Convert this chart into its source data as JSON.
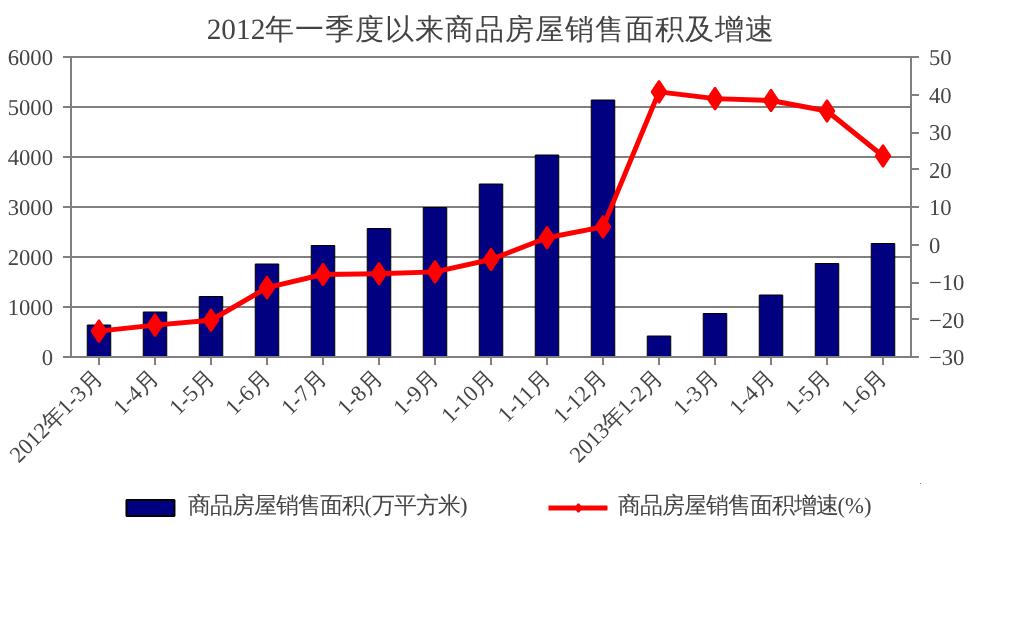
{
  "chart_data": {
    "type": "bar",
    "title": "2012年一季度以来商品房屋销售面积及增速",
    "categories": [
      "2012年1-3月",
      "1-4月",
      "1-5月",
      "1-6月",
      "1-7月",
      "1-8月",
      "1-9月",
      "1-10月",
      "1-11月",
      "1-12月",
      "2013年1-2月",
      "1-3月",
      "1-4月",
      "1-5月",
      "1-6月"
    ],
    "series": [
      {
        "name": "商品房屋销售面积(万平方米)",
        "color": "#000080",
        "values": [
          640,
          900,
          1210,
          1860,
          2230,
          2570,
          2990,
          3460,
          4040,
          5140,
          420,
          870,
          1240,
          1870,
          2270
        ]
      },
      {
        "name": "商品房屋销售面积增速(%)",
        "type": "line",
        "axis": "y2",
        "color": "#ff0000",
        "marker": "diamond",
        "values": [
          -23.1,
          -21.5,
          -20.2,
          -11.5,
          -8.0,
          -7.8,
          -7.3,
          -4.0,
          1.8,
          4.7,
          40.7,
          38.9,
          38.4,
          35.6,
          23.6
        ]
      }
    ],
    "ylim": [
      0,
      6000
    ],
    "yticks": [
      0,
      1000,
      2000,
      3000,
      4000,
      5000,
      6000
    ],
    "y2lim": [
      -30,
      50
    ],
    "y2ticks": [
      {
        "value": -30,
        "label": "−30"
      },
      {
        "value": -20,
        "label": "−20"
      },
      {
        "value": -10,
        "label": "−10"
      },
      0,
      10,
      20,
      30,
      40,
      50
    ],
    "grid": "y",
    "legend": "bottom"
  }
}
